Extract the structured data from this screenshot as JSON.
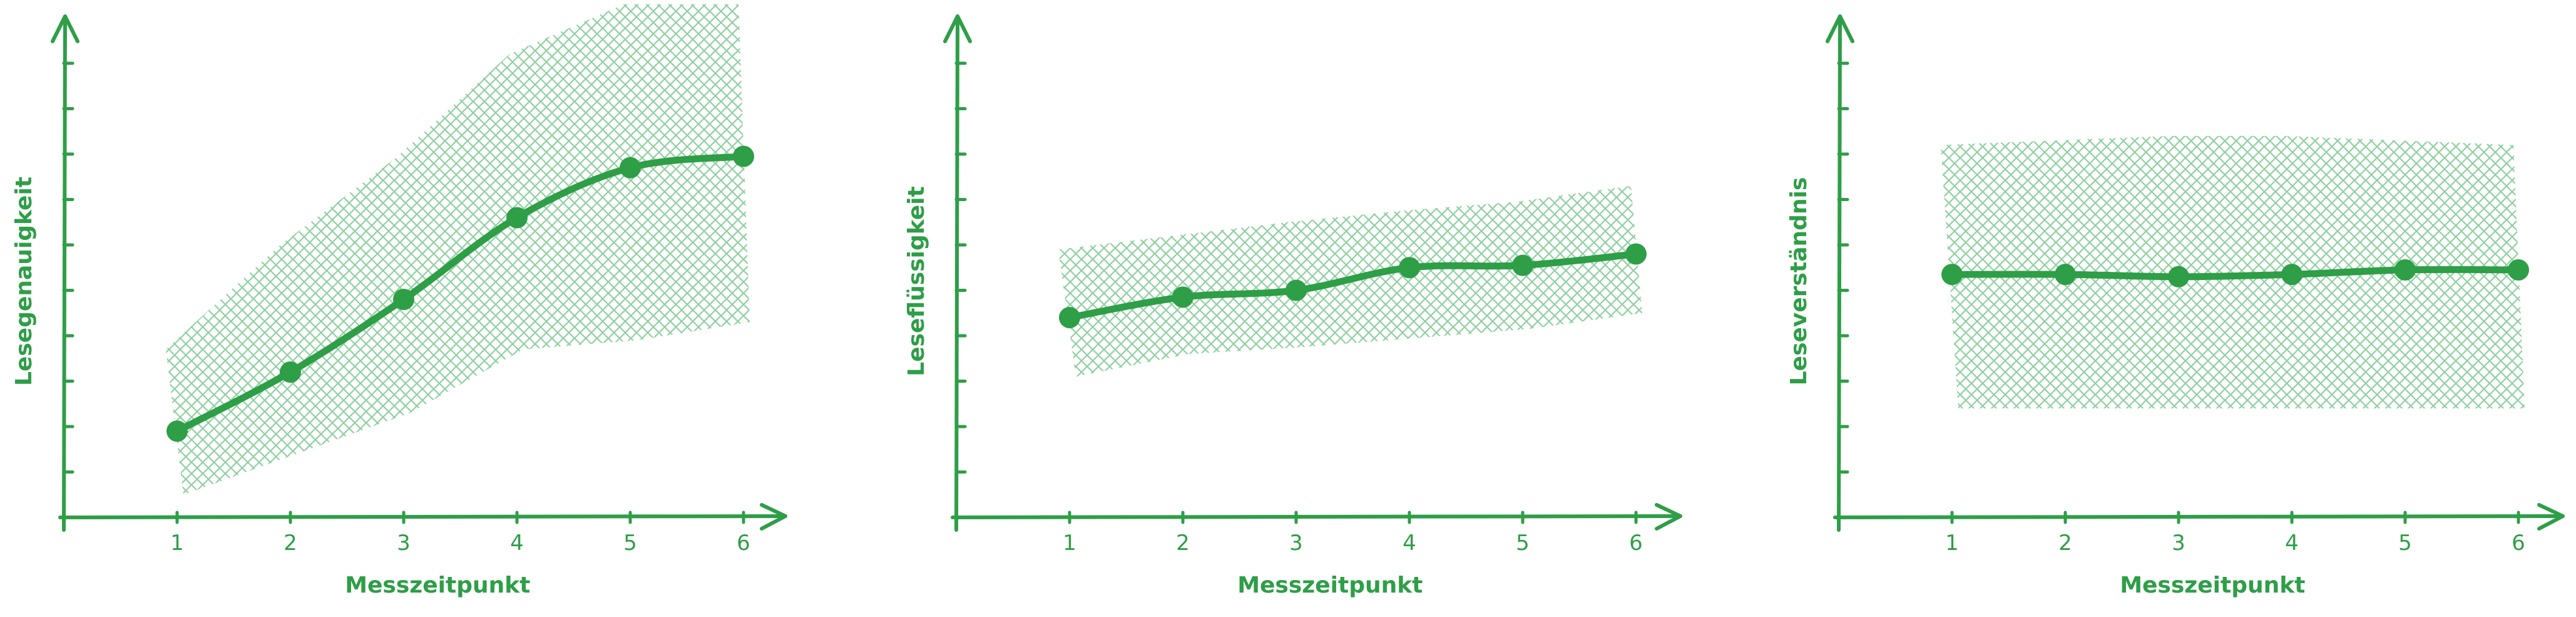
{
  "colors": {
    "accent": "#2e9e47",
    "band": "#8fd0a0"
  },
  "chart_data": [
    {
      "type": "line",
      "xlabel": "Messzeitpunkt",
      "ylabel": "Lesegenauigkeit",
      "x": [
        1,
        2,
        3,
        4,
        5,
        6
      ],
      "series": [
        {
          "values": [
            1.9,
            3.2,
            4.8,
            6.6,
            7.7,
            7.95
          ],
          "band_lower": [
            0.5,
            1.4,
            2.3,
            3.7,
            3.9,
            4.3
          ],
          "band_upper": [
            3.7,
            6.0,
            7.9,
            10.2,
            11.3,
            11.3
          ]
        }
      ],
      "xlim": [
        0,
        6.5
      ],
      "ylim": [
        0,
        11.3
      ],
      "grid": false
    },
    {
      "type": "line",
      "xlabel": "Messzeitpunkt",
      "ylabel": "Leseflüssigkeit",
      "x": [
        1,
        2,
        3,
        4,
        5,
        6
      ],
      "series": [
        {
          "values": [
            4.4,
            4.85,
            5.0,
            5.5,
            5.55,
            5.8
          ],
          "band_lower": [
            3.1,
            3.6,
            3.75,
            3.95,
            4.15,
            4.5
          ],
          "band_upper": [
            5.9,
            6.2,
            6.5,
            6.75,
            6.95,
            7.3
          ]
        }
      ],
      "xlim": [
        0,
        6.5
      ],
      "ylim": [
        0,
        11.3
      ],
      "grid": false
    },
    {
      "type": "line",
      "xlabel": "Messzeitpunkt",
      "ylabel": "Leseverständnis",
      "x": [
        1,
        2,
        3,
        4,
        5,
        6
      ],
      "series": [
        {
          "values": [
            5.35,
            5.35,
            5.3,
            5.35,
            5.45,
            5.45
          ],
          "band_lower": [
            2.4,
            2.4,
            2.4,
            2.4,
            2.4,
            2.4
          ],
          "band_upper": [
            8.2,
            8.3,
            8.4,
            8.4,
            8.3,
            8.2
          ]
        }
      ],
      "xlim": [
        0,
        6.5
      ],
      "ylim": [
        0,
        11.3
      ],
      "grid": false
    }
  ]
}
